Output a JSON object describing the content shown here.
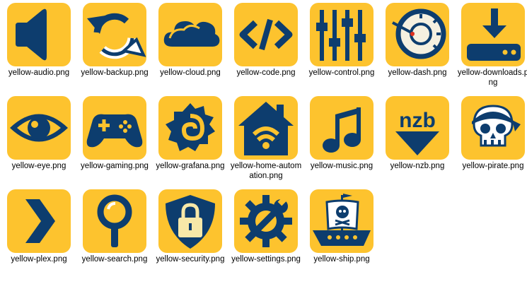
{
  "colors": {
    "tile": "#fdc32e",
    "icon": "#0d3d6e",
    "background": "#ffffff"
  },
  "files": [
    {
      "label": "yellow-audio.png",
      "icon": "speaker-icon"
    },
    {
      "label": "yellow-backup.png",
      "icon": "sync-icon"
    },
    {
      "label": "yellow-cloud.png",
      "icon": "cloud-icon"
    },
    {
      "label": "yellow-code.png",
      "icon": "code-icon"
    },
    {
      "label": "yellow-control.png",
      "icon": "sliders-icon"
    },
    {
      "label": "yellow-dash.png",
      "icon": "gauge-icon"
    },
    {
      "label": "yellow-downloads.png",
      "icon": "download-icon"
    },
    {
      "label": "yellow-eye.png",
      "icon": "eye-icon"
    },
    {
      "label": "yellow-gaming.png",
      "icon": "gamepad-icon"
    },
    {
      "label": "yellow-grafana.png",
      "icon": "grafana-icon"
    },
    {
      "label": "yellow-home-automation.png",
      "icon": "home-wifi-icon"
    },
    {
      "label": "yellow-music.png",
      "icon": "music-note-icon"
    },
    {
      "label": "yellow-nzb.png",
      "icon": "nzb-icon"
    },
    {
      "label": "yellow-pirate.png",
      "icon": "pirate-skull-icon"
    },
    {
      "label": "yellow-plex.png",
      "icon": "plex-chevron-icon"
    },
    {
      "label": "yellow-search.png",
      "icon": "magnifier-icon"
    },
    {
      "label": "yellow-security.png",
      "icon": "shield-lock-icon"
    },
    {
      "label": "yellow-settings.png",
      "icon": "gear-wrench-icon"
    },
    {
      "label": "yellow-ship.png",
      "icon": "pirate-ship-icon"
    }
  ]
}
